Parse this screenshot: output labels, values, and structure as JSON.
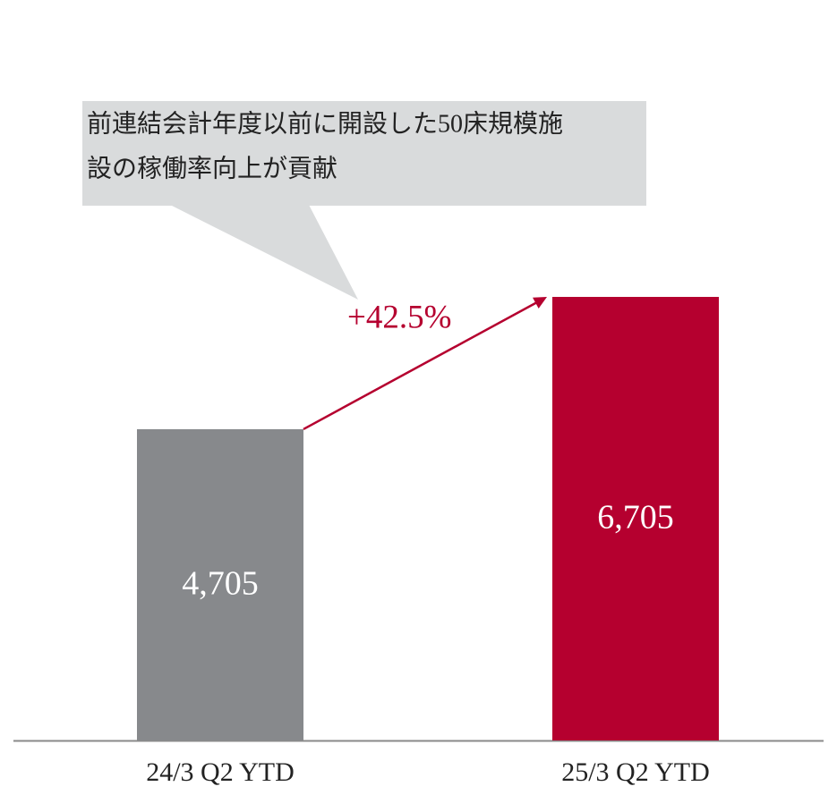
{
  "chart_data": {
    "type": "bar",
    "categories": [
      "24/3 Q2 YTD",
      "25/3 Q2 YTD"
    ],
    "series": [
      {
        "values": [
          4705,
          6705
        ],
        "value_labels": [
          "4,705",
          "6,705"
        ],
        "colors": [
          "#87898c",
          "#b5002f"
        ]
      }
    ],
    "annotations": {
      "growth": "+42.5%",
      "callout": [
        "前連結会計年度以前に開設した50床規模施",
        "設の稼働率向上が貢献"
      ]
    },
    "arrow_color": "#b5002f",
    "callout_color": "#d9dbdc"
  }
}
